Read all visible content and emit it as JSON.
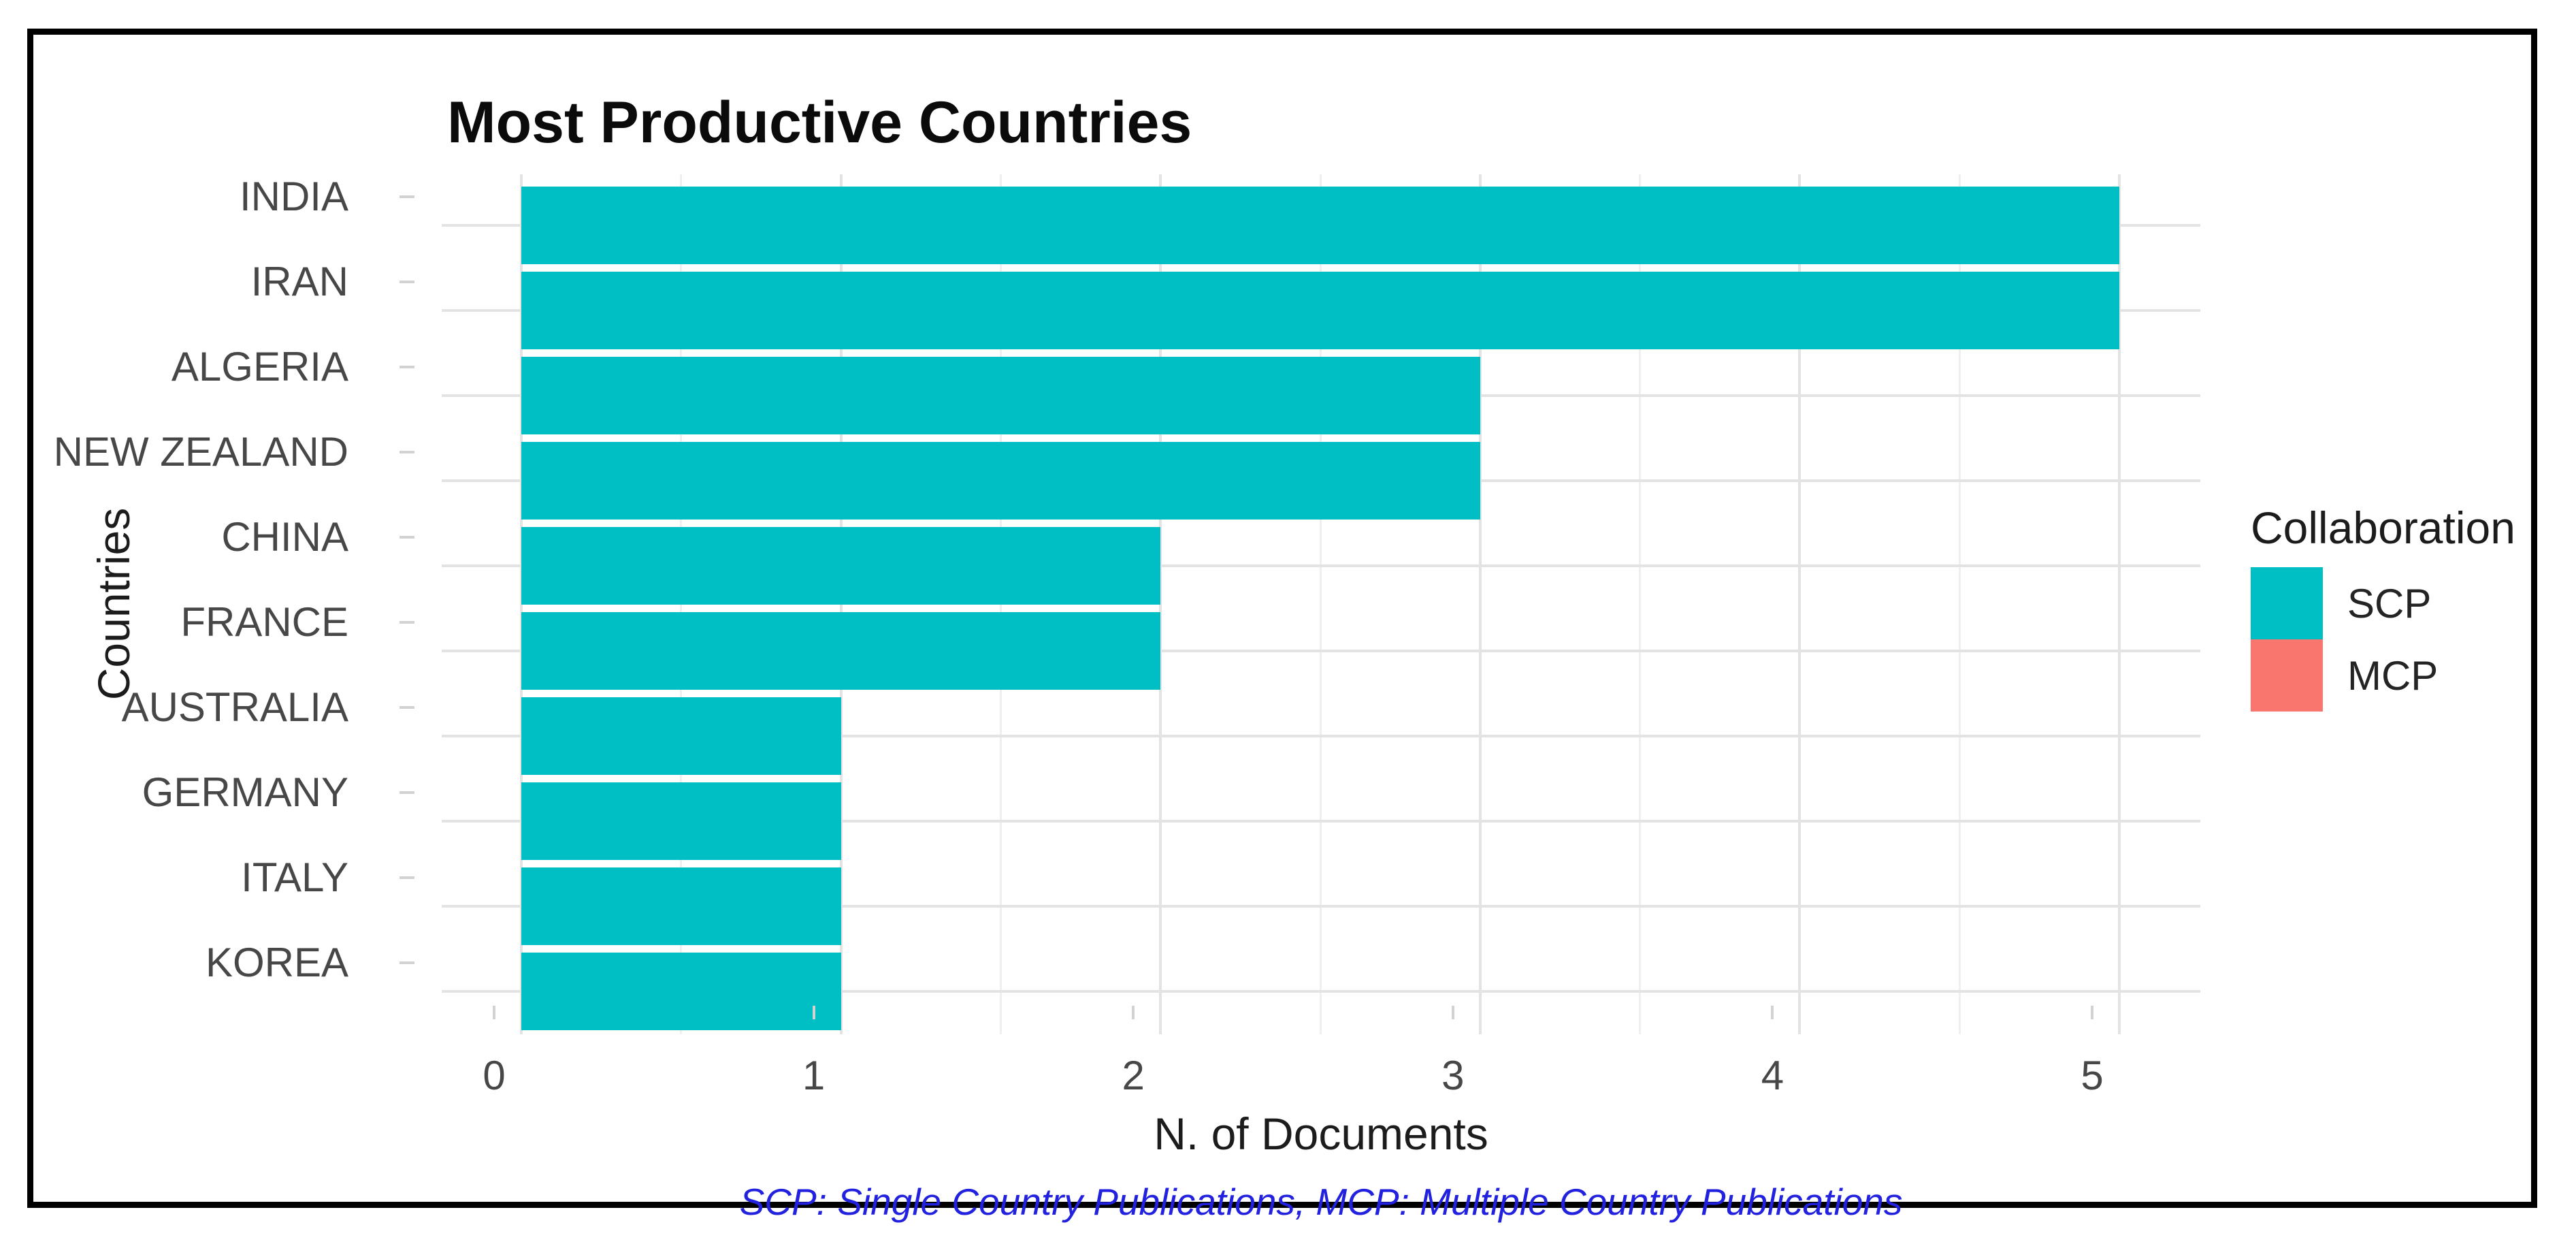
{
  "chart_data": {
    "type": "bar",
    "orientation": "horizontal",
    "title": "Most Productive Countries",
    "xlabel": "N. of Documents",
    "ylabel": "Countries",
    "categories": [
      "INDIA",
      "IRAN",
      "ALGERIA",
      "NEW ZEALAND",
      "CHINA",
      "FRANCE",
      "AUSTRALIA",
      "GERMANY",
      "ITALY",
      "KOREA"
    ],
    "series": [
      {
        "name": "SCP",
        "color": "#00BFC4",
        "values": [
          5,
          5,
          3,
          3,
          2,
          2,
          1,
          1,
          1,
          1
        ]
      },
      {
        "name": "MCP",
        "color": "#F8766D",
        "values": [
          0,
          0,
          0,
          0,
          0,
          0,
          0,
          0,
          0,
          0
        ]
      }
    ],
    "x_ticks": [
      0,
      1,
      2,
      3,
      4,
      5
    ],
    "xlim": [
      0,
      5
    ],
    "grid": true,
    "legend_position": "right"
  },
  "legend": {
    "title": "Collaboration",
    "items": [
      {
        "label": "SCP",
        "color": "#00BFC4"
      },
      {
        "label": "MCP",
        "color": "#F8766D"
      }
    ]
  },
  "caption": {
    "text": "SCP: Single Country Publications, MCP: Multiple Country Publications",
    "color": "#2121DF"
  },
  "frame": {
    "border_color": "#000000"
  }
}
